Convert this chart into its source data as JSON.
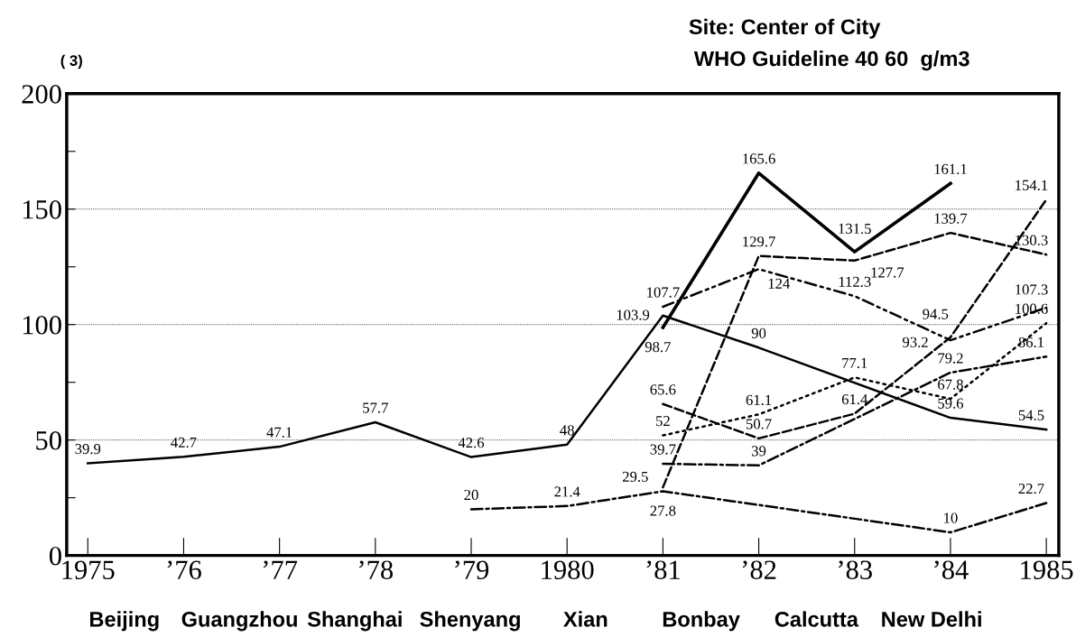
{
  "chart_data": {
    "type": "line",
    "title": "Site: Center of City",
    "subtitle": "WHO Guideline 40 60  g/m3",
    "ylabel": "( 3)",
    "annotations": [
      "Beijing",
      "Guangzhou",
      "Shanghai",
      "Shenyang",
      "Xian",
      "Bonbay",
      "Calcutta",
      "New Delhi"
    ],
    "xlim": [
      1974.78,
      1985.13
    ],
    "xticks": [
      {
        "value": 1975,
        "label": "1975"
      },
      {
        "value": 1976,
        "label": "’76"
      },
      {
        "value": 1977,
        "label": "’77"
      },
      {
        "value": 1978,
        "label": "’78"
      },
      {
        "value": 1979,
        "label": "’79"
      },
      {
        "value": 1980,
        "label": "1980"
      },
      {
        "value": 1981,
        "label": "’81"
      },
      {
        "value": 1982,
        "label": "’82"
      },
      {
        "value": 1983,
        "label": "’83"
      },
      {
        "value": 1984,
        "label": "’84"
      },
      {
        "value": 1985,
        "label": "1985"
      }
    ],
    "ylim": [
      0,
      200
    ],
    "yticks": [
      0,
      {
        "value": 25,
        "label": null
      },
      50,
      {
        "value": 75,
        "label": null
      },
      100,
      {
        "value": 125,
        "label": null
      },
      150,
      {
        "value": 175,
        "label": null
      },
      200
    ],
    "grid": "y",
    "legend": false,
    "marker": "none",
    "data_labels": true,
    "series": [
      {
        "color": "#000000",
        "line_style": "solid",
        "x": [
          1975,
          1976,
          1977,
          1978,
          1979,
          1980,
          1981,
          1982,
          1984,
          1985
        ],
        "values": [
          39.9,
          42.7,
          47.1,
          57.7,
          42.6,
          48,
          103.9,
          90,
          59.6,
          54.5
        ]
      },
      {
        "color": "#000000",
        "line_style": "solid",
        "x": [
          1981,
          1982,
          1983,
          1984
        ],
        "values": [
          98.7,
          165.6,
          131.5,
          161.1
        ]
      },
      {
        "color": "#000000",
        "line_style": "dashed",
        "x": [
          1981,
          1982,
          1983,
          1984,
          1985
        ],
        "values": [
          29.5,
          129.7,
          127.7,
          139.7,
          130.3
        ]
      },
      {
        "color": "#000000",
        "line_style": "dashdotdot",
        "x": [
          1981,
          1982,
          1983,
          1984,
          1985
        ],
        "values": [
          107.7,
          124,
          112.3,
          93.2,
          107.3
        ]
      },
      {
        "color": "#000000",
        "line_style": "dashed",
        "x": [
          1981,
          1982,
          1983,
          1984,
          1985
        ],
        "values": [
          65.6,
          50.7,
          61.4,
          94.5,
          154.1
        ]
      },
      {
        "color": "#000000",
        "line_style": "dotted",
        "x": [
          1981,
          1982,
          1983,
          1984,
          1985
        ],
        "values": [
          52,
          61.1,
          77.1,
          67.8,
          100.6
        ]
      },
      {
        "color": "#000000",
        "line_style": "dashdot",
        "x": [
          1981,
          1982,
          1984,
          1985
        ],
        "values": [
          39.7,
          39,
          79.2,
          86.1
        ]
      },
      {
        "color": "#000000",
        "line_style": "dashdot",
        "x": [
          1979,
          1980,
          1981,
          1984,
          1985
        ],
        "values": [
          20,
          21.4,
          27.8,
          10,
          22.7
        ]
      }
    ]
  }
}
